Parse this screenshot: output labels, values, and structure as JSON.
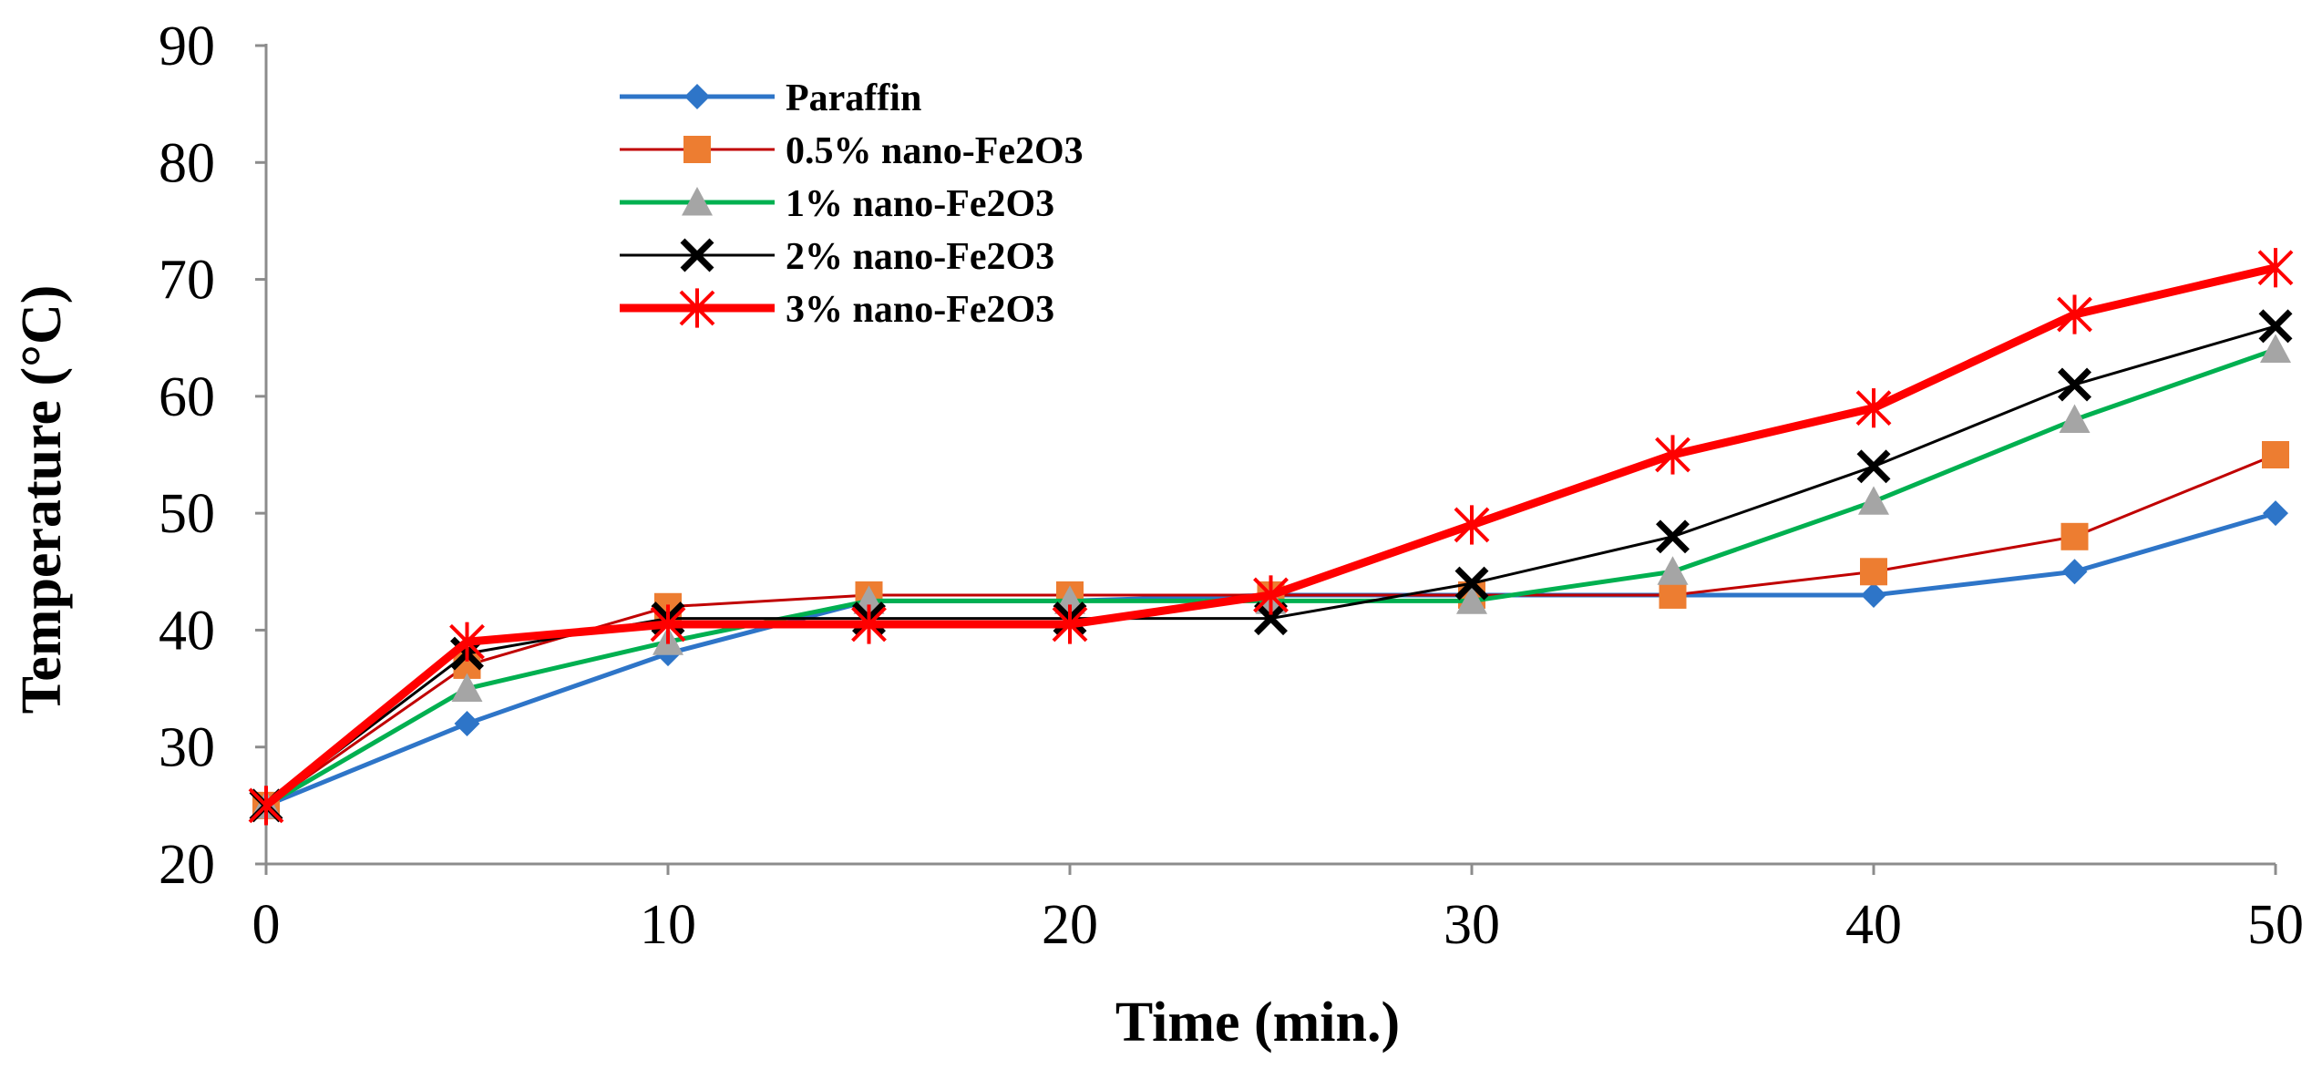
{
  "chart_data": {
    "type": "line",
    "title": "",
    "xlabel": "Time (min.)",
    "ylabel": "Temperature (°C)",
    "xlim": [
      0,
      50
    ],
    "ylim": [
      20,
      90
    ],
    "x_ticks": [
      0,
      10,
      20,
      30,
      40,
      50
    ],
    "y_ticks": [
      20,
      30,
      40,
      50,
      60,
      70,
      80,
      90
    ],
    "grid": false,
    "legend_position": "top-left",
    "x": [
      0,
      5,
      10,
      15,
      20,
      25,
      30,
      35,
      40,
      45,
      50
    ],
    "series": [
      {
        "name": "Paraffin",
        "color": "#2E75C8",
        "marker": "diamond",
        "line_width": "normal",
        "values": [
          25,
          32,
          38,
          42.5,
          42.5,
          43,
          43,
          43,
          43,
          45,
          50
        ]
      },
      {
        "name": "0.5% nano-Fe2O3",
        "color": "#C00000",
        "marker_color": "#ED7D31",
        "marker": "square",
        "line_width": "thin",
        "values": [
          25,
          37,
          42,
          43,
          43,
          43,
          43,
          43,
          45,
          48,
          55
        ]
      },
      {
        "name": "1% nano-Fe2O3",
        "color": "#00B050",
        "marker_color": "#A5A5A5",
        "marker": "triangle",
        "line_width": "normal",
        "values": [
          25,
          35,
          39,
          42.5,
          42.5,
          42.5,
          42.5,
          45,
          51,
          58,
          64
        ]
      },
      {
        "name": "2% nano-Fe2O3",
        "color": "#000000",
        "marker": "x",
        "line_width": "thin",
        "values": [
          25,
          38,
          41,
          41,
          41,
          41,
          44,
          48,
          54,
          61,
          66
        ]
      },
      {
        "name": "3% nano-Fe2O3",
        "color": "#FF0000",
        "marker": "star",
        "line_width": "thick",
        "values": [
          25,
          39,
          40.5,
          40.5,
          40.5,
          43,
          49,
          55,
          59,
          67,
          71
        ]
      }
    ]
  }
}
